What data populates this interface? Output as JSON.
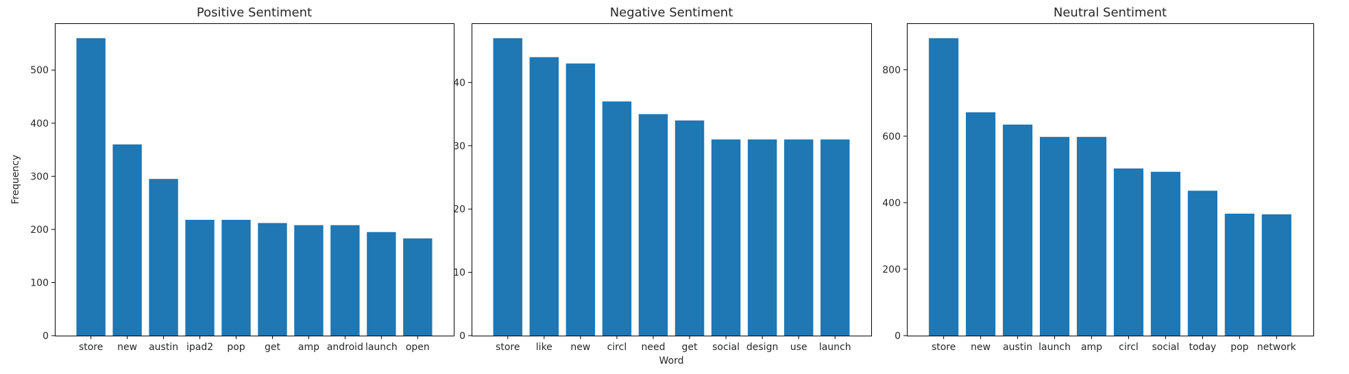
{
  "chart_data": [
    {
      "type": "bar",
      "title": "Positive Sentiment",
      "xlabel": "",
      "ylabel": "Frequency",
      "categories": [
        "store",
        "new",
        "austin",
        "ipad2",
        "pop",
        "get",
        "amp",
        "android",
        "launch",
        "open"
      ],
      "values": [
        560,
        360,
        295,
        218,
        218,
        212,
        208,
        208,
        195,
        183
      ],
      "ylim": [
        0,
        588
      ],
      "yticks": [
        0,
        100,
        200,
        300,
        400,
        500
      ],
      "grid": false,
      "color": "#1f77b4"
    },
    {
      "type": "bar",
      "title": "Negative Sentiment",
      "xlabel": "Word",
      "ylabel": "",
      "categories": [
        "store",
        "like",
        "new",
        "circl",
        "need",
        "get",
        "social",
        "design",
        "use",
        "launch"
      ],
      "values": [
        47,
        44,
        43,
        37,
        35,
        34,
        31,
        31,
        31,
        31
      ],
      "ylim": [
        0,
        49.35
      ],
      "yticks": [
        0,
        10,
        20,
        30,
        40
      ],
      "grid": false,
      "color": "#1f77b4"
    },
    {
      "type": "bar",
      "title": "Neutral Sentiment",
      "xlabel": "",
      "ylabel": "",
      "categories": [
        "store",
        "new",
        "austin",
        "launch",
        "amp",
        "circl",
        "social",
        "today",
        "pop",
        "network"
      ],
      "values": [
        895,
        672,
        635,
        598,
        598,
        503,
        493,
        436,
        367,
        365
      ],
      "ylim": [
        0,
        939.75
      ],
      "yticks": [
        0,
        200,
        400,
        600,
        800
      ],
      "grid": false,
      "color": "#1f77b4"
    }
  ]
}
